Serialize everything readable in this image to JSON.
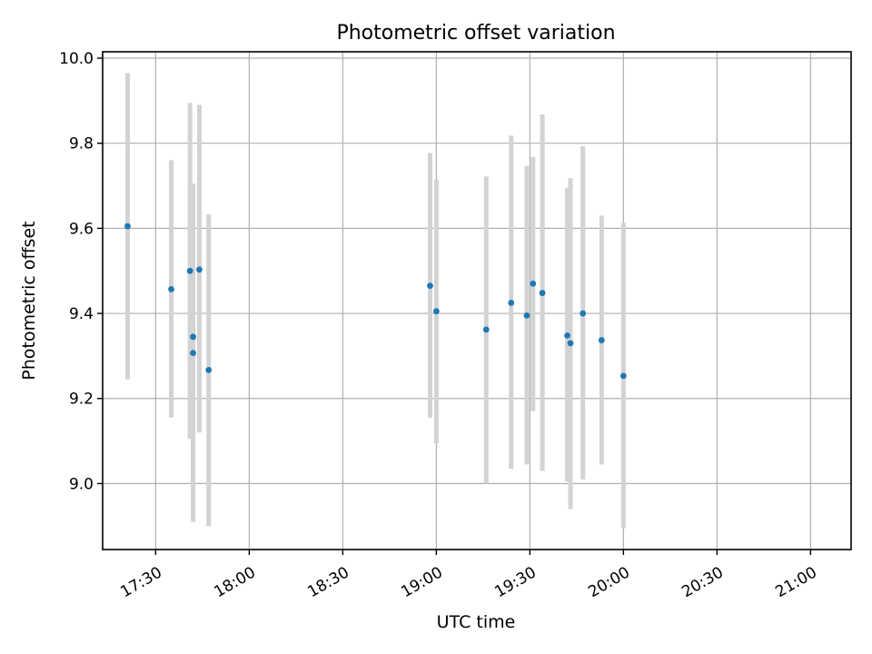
{
  "chart_data": {
    "type": "scatter",
    "title": "Photometric offset variation",
    "xlabel": "UTC time",
    "ylabel": "Photometric offset",
    "x_unit": "time of day (UTC)",
    "xlim": [
      "17:13",
      "21:13"
    ],
    "ylim": [
      8.845,
      10.015
    ],
    "x_ticks": [
      "17:30",
      "18:00",
      "18:30",
      "19:00",
      "19:30",
      "20:00",
      "20:30",
      "21:00"
    ],
    "y_ticks": [
      9.0,
      9.2,
      9.4,
      9.6,
      9.8,
      10.0
    ],
    "y_tick_labels": [
      "9.0",
      "9.2",
      "9.4",
      "9.6",
      "9.8",
      "10.0"
    ],
    "grid": true,
    "marker_color": "#1f77b4",
    "errorbar_color": "#d3d3d3",
    "points": [
      {
        "x": "17:21",
        "y": 9.605,
        "ylow": 9.245,
        "yhigh": 9.965
      },
      {
        "x": "17:35",
        "y": 9.457,
        "ylow": 9.155,
        "yhigh": 9.76
      },
      {
        "x": "17:41",
        "y": 9.5,
        "ylow": 9.105,
        "yhigh": 9.895
      },
      {
        "x": "17:42",
        "y": 9.345,
        "ylow": 8.99,
        "yhigh": 9.7
      },
      {
        "x": "17:42",
        "y": 9.307,
        "ylow": 8.91,
        "yhigh": 9.705
      },
      {
        "x": "17:44",
        "y": 9.503,
        "ylow": 9.12,
        "yhigh": 9.89
      },
      {
        "x": "17:47",
        "y": 9.267,
        "ylow": 8.9,
        "yhigh": 9.633
      },
      {
        "x": "18:58",
        "y": 9.465,
        "ylow": 9.155,
        "yhigh": 9.777
      },
      {
        "x": "19:00",
        "y": 9.405,
        "ylow": 9.095,
        "yhigh": 9.715
      },
      {
        "x": "19:16",
        "y": 9.362,
        "ylow": 9.0,
        "yhigh": 9.722
      },
      {
        "x": "19:24",
        "y": 9.425,
        "ylow": 9.035,
        "yhigh": 9.818
      },
      {
        "x": "19:29",
        "y": 9.395,
        "ylow": 9.045,
        "yhigh": 9.747
      },
      {
        "x": "19:31",
        "y": 9.47,
        "ylow": 9.17,
        "yhigh": 9.768
      },
      {
        "x": "19:34",
        "y": 9.448,
        "ylow": 9.03,
        "yhigh": 9.868
      },
      {
        "x": "19:42",
        "y": 9.348,
        "ylow": 9.005,
        "yhigh": 9.695
      },
      {
        "x": "19:43",
        "y": 9.33,
        "ylow": 8.94,
        "yhigh": 9.718
      },
      {
        "x": "19:47",
        "y": 9.4,
        "ylow": 9.01,
        "yhigh": 9.793
      },
      {
        "x": "19:53",
        "y": 9.337,
        "ylow": 9.045,
        "yhigh": 9.63
      },
      {
        "x": "20:00",
        "y": 9.253,
        "ylow": 8.895,
        "yhigh": 9.613
      }
    ]
  }
}
